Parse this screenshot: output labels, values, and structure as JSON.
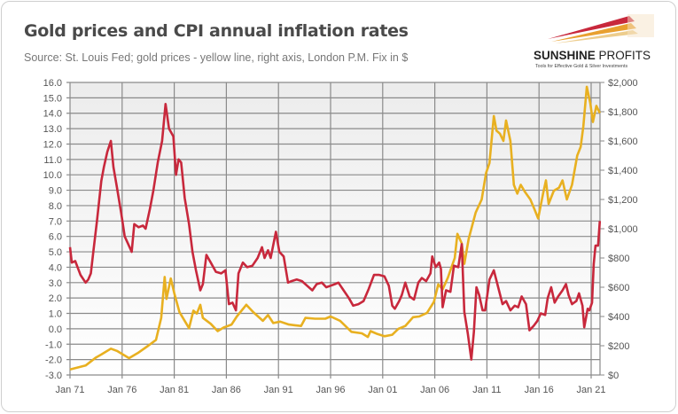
{
  "header": {
    "title": "Gold prices and CPI annual inflation rates",
    "subtitle": "Source: St. Louis Fed; gold prices - yellow line, right axis, London P.M. Fix in $"
  },
  "logo": {
    "name": "SUNSHINE PROFITS",
    "tagline": "Tools for Effective Gold & Silver Investments",
    "icon": "sun-rays-swoosh-icon"
  },
  "colors": {
    "cpi": "#c8283c",
    "gold": "#e8b020",
    "grid": "#8a8a8a",
    "plot_bg": "#f2f2f2"
  },
  "chart_data": {
    "type": "line",
    "title": "Gold prices and CPI annual inflation rates",
    "grid": true,
    "x_ticks": [
      "Jan 71",
      "Jan 76",
      "Jan 81",
      "Jan 86",
      "Jan 91",
      "Jan 96",
      "Jan 01",
      "Jan 06",
      "Jan 11",
      "Jan 16",
      "Jan 21"
    ],
    "xlim": [
      "1971-01",
      "2021-11"
    ],
    "y_left": {
      "ylim": [
        -3,
        16
      ],
      "ticks": [
        "16.0",
        "15.0",
        "14.0",
        "13.0",
        "12.0",
        "11.0",
        "10.0",
        "9.0",
        "8.0",
        "7.0",
        "6.0",
        "5.0",
        "4.0",
        "3.0",
        "2.0",
        "1.0",
        "0.0",
        "-1.0",
        "-2.0",
        "-3.0"
      ]
    },
    "y_right": {
      "ylim": [
        0,
        2000
      ],
      "ticks": [
        "$2,000",
        "$1,800",
        "$1,600",
        "$1,400",
        "$1,200",
        "$1,000",
        "$800",
        "$600",
        "$400",
        "$200",
        "$0"
      ]
    },
    "series": [
      {
        "key": "cpi",
        "axis": "left",
        "color": "#c8283c",
        "points": [
          [
            "1971-01",
            5.3
          ],
          [
            "1971-03",
            4.3
          ],
          [
            "1971-07",
            4.4
          ],
          [
            "1972-01",
            3.5
          ],
          [
            "1972-07",
            3.0
          ],
          [
            "1972-10",
            3.2
          ],
          [
            "1973-01",
            3.6
          ],
          [
            "1973-04",
            5.1
          ],
          [
            "1973-08",
            7.0
          ],
          [
            "1974-01",
            9.6
          ],
          [
            "1974-04",
            10.5
          ],
          [
            "1974-08",
            11.5
          ],
          [
            "1974-12",
            12.2
          ],
          [
            "1975-03",
            10.5
          ],
          [
            "1975-07",
            9.2
          ],
          [
            "1975-12",
            7.5
          ],
          [
            "1976-04",
            6.0
          ],
          [
            "1976-08",
            5.5
          ],
          [
            "1976-12",
            5.0
          ],
          [
            "1977-03",
            6.8
          ],
          [
            "1977-08",
            6.6
          ],
          [
            "1978-01",
            6.7
          ],
          [
            "1978-04",
            6.5
          ],
          [
            "1978-09",
            7.8
          ],
          [
            "1979-01",
            9.0
          ],
          [
            "1979-06",
            10.8
          ],
          [
            "1979-11",
            12.2
          ],
          [
            "1980-03",
            14.6
          ],
          [
            "1980-07",
            13.0
          ],
          [
            "1980-12",
            12.5
          ],
          [
            "1981-03",
            10.0
          ],
          [
            "1981-06",
            11.0
          ],
          [
            "1981-09",
            10.8
          ],
          [
            "1982-01",
            8.5
          ],
          [
            "1982-06",
            6.8
          ],
          [
            "1982-10",
            5.0
          ],
          [
            "1983-02",
            3.8
          ],
          [
            "1983-07",
            2.5
          ],
          [
            "1983-10",
            2.9
          ],
          [
            "1984-02",
            4.8
          ],
          [
            "1984-07",
            4.3
          ],
          [
            "1985-01",
            3.7
          ],
          [
            "1985-07",
            3.6
          ],
          [
            "1985-12",
            3.8
          ],
          [
            "1986-04",
            1.6
          ],
          [
            "1986-08",
            1.7
          ],
          [
            "1986-12",
            1.2
          ],
          [
            "1987-03",
            3.6
          ],
          [
            "1987-08",
            4.3
          ],
          [
            "1988-01",
            4.0
          ],
          [
            "1988-07",
            4.1
          ],
          [
            "1989-01",
            4.6
          ],
          [
            "1989-06",
            5.3
          ],
          [
            "1989-09",
            4.6
          ],
          [
            "1990-01",
            5.1
          ],
          [
            "1990-04",
            4.6
          ],
          [
            "1990-10",
            6.3
          ],
          [
            "1991-02",
            5.0
          ],
          [
            "1991-07",
            4.7
          ],
          [
            "1991-12",
            3.0
          ],
          [
            "1992-04",
            3.1
          ],
          [
            "1992-10",
            3.2
          ],
          [
            "1993-04",
            3.1
          ],
          [
            "1993-10",
            2.8
          ],
          [
            "1994-04",
            2.5
          ],
          [
            "1994-09",
            2.9
          ],
          [
            "1995-03",
            3.0
          ],
          [
            "1995-08",
            2.7
          ],
          [
            "1996-01",
            2.8
          ],
          [
            "1996-06",
            2.9
          ],
          [
            "1996-10",
            3.0
          ],
          [
            "1997-04",
            2.5
          ],
          [
            "1997-10",
            2.0
          ],
          [
            "1998-03",
            1.5
          ],
          [
            "1998-09",
            1.6
          ],
          [
            "1999-03",
            1.8
          ],
          [
            "1999-09",
            2.6
          ],
          [
            "2000-03",
            3.5
          ],
          [
            "2000-09",
            3.5
          ],
          [
            "2001-03",
            3.4
          ],
          [
            "2001-08",
            2.8
          ],
          [
            "2001-12",
            1.5
          ],
          [
            "2002-03",
            1.3
          ],
          [
            "2002-08",
            1.8
          ],
          [
            "2002-11",
            2.2
          ],
          [
            "2003-03",
            3.0
          ],
          [
            "2003-08",
            2.1
          ],
          [
            "2004-01",
            1.9
          ],
          [
            "2004-06",
            3.0
          ],
          [
            "2004-10",
            3.3
          ],
          [
            "2005-03",
            3.1
          ],
          [
            "2005-08",
            3.6
          ],
          [
            "2005-10",
            4.7
          ],
          [
            "2006-02",
            4.0
          ],
          [
            "2006-06",
            4.3
          ],
          [
            "2006-08",
            3.9
          ],
          [
            "2006-10",
            1.4
          ],
          [
            "2007-02",
            2.5
          ],
          [
            "2007-07",
            2.4
          ],
          [
            "2007-11",
            4.1
          ],
          [
            "2008-04",
            4.0
          ],
          [
            "2008-08",
            5.5
          ],
          [
            "2008-11",
            1.1
          ],
          [
            "2009-03",
            -0.3
          ],
          [
            "2009-07",
            -2.0
          ],
          [
            "2009-10",
            -0.2
          ],
          [
            "2010-01",
            2.7
          ],
          [
            "2010-04",
            2.2
          ],
          [
            "2010-08",
            1.2
          ],
          [
            "2010-11",
            1.2
          ],
          [
            "2011-04",
            3.2
          ],
          [
            "2011-09",
            3.8
          ],
          [
            "2012-01",
            2.9
          ],
          [
            "2012-07",
            1.6
          ],
          [
            "2012-11",
            1.8
          ],
          [
            "2013-04",
            1.2
          ],
          [
            "2013-09",
            1.5
          ],
          [
            "2014-01",
            1.4
          ],
          [
            "2014-05",
            2.1
          ],
          [
            "2014-10",
            1.6
          ],
          [
            "2015-02",
            -0.1
          ],
          [
            "2015-07",
            0.2
          ],
          [
            "2015-11",
            0.5
          ],
          [
            "2016-03",
            1.0
          ],
          [
            "2016-08",
            0.9
          ],
          [
            "2016-11",
            2.0
          ],
          [
            "2017-03",
            2.7
          ],
          [
            "2017-07",
            1.7
          ],
          [
            "2017-11",
            2.1
          ],
          [
            "2018-04",
            2.5
          ],
          [
            "2018-08",
            2.9
          ],
          [
            "2018-11",
            2.2
          ],
          [
            "2019-03",
            1.6
          ],
          [
            "2019-08",
            1.8
          ],
          [
            "2019-11",
            2.3
          ],
          [
            "2020-03",
            1.5
          ],
          [
            "2020-05",
            0.1
          ],
          [
            "2020-09",
            1.3
          ],
          [
            "2020-11",
            1.2
          ],
          [
            "2021-02",
            1.7
          ],
          [
            "2021-04",
            4.2
          ],
          [
            "2021-06",
            5.4
          ],
          [
            "2021-09",
            5.4
          ],
          [
            "2021-11",
            7.0
          ]
        ]
      },
      {
        "key": "gold",
        "axis": "right",
        "color": "#e8b020",
        "points": [
          [
            "1971-01",
            38
          ],
          [
            "1972-07",
            65
          ],
          [
            "1973-07",
            120
          ],
          [
            "1974-01",
            140
          ],
          [
            "1974-12",
            180
          ],
          [
            "1975-07",
            165
          ],
          [
            "1976-09",
            115
          ],
          [
            "1977-07",
            150
          ],
          [
            "1978-07",
            200
          ],
          [
            "1979-04",
            240
          ],
          [
            "1979-10",
            390
          ],
          [
            "1980-02",
            670
          ],
          [
            "1980-04",
            520
          ],
          [
            "1980-09",
            660
          ],
          [
            "1981-01",
            560
          ],
          [
            "1981-07",
            430
          ],
          [
            "1982-06",
            320
          ],
          [
            "1982-11",
            440
          ],
          [
            "1983-03",
            420
          ],
          [
            "1983-07",
            480
          ],
          [
            "1983-10",
            390
          ],
          [
            "1984-07",
            350
          ],
          [
            "1985-03",
            300
          ],
          [
            "1985-10",
            325
          ],
          [
            "1986-07",
            345
          ],
          [
            "1987-01",
            400
          ],
          [
            "1987-12",
            480
          ],
          [
            "1988-08",
            430
          ],
          [
            "1989-07",
            370
          ],
          [
            "1990-01",
            410
          ],
          [
            "1990-07",
            355
          ],
          [
            "1991-03",
            365
          ],
          [
            "1992-01",
            345
          ],
          [
            "1992-08",
            340
          ],
          [
            "1993-03",
            335
          ],
          [
            "1993-08",
            390
          ],
          [
            "1994-07",
            385
          ],
          [
            "1995-07",
            385
          ],
          [
            "1996-01",
            400
          ],
          [
            "1996-12",
            370
          ],
          [
            "1997-07",
            330
          ],
          [
            "1998-01",
            295
          ],
          [
            "1999-01",
            285
          ],
          [
            "1999-08",
            260
          ],
          [
            "1999-11",
            300
          ],
          [
            "2000-07",
            280
          ],
          [
            "2001-03",
            265
          ],
          [
            "2001-12",
            275
          ],
          [
            "2002-07",
            315
          ],
          [
            "2003-03",
            335
          ],
          [
            "2003-12",
            395
          ],
          [
            "2004-07",
            400
          ],
          [
            "2005-04",
            425
          ],
          [
            "2005-12",
            500
          ],
          [
            "2006-05",
            620
          ],
          [
            "2006-10",
            585
          ],
          [
            "2007-04",
            665
          ],
          [
            "2007-12",
            800
          ],
          [
            "2008-03",
            965
          ],
          [
            "2008-08",
            900
          ],
          [
            "2008-11",
            760
          ],
          [
            "2009-04",
            930
          ],
          [
            "2009-12",
            1110
          ],
          [
            "2010-07",
            1200
          ],
          [
            "2010-12",
            1380
          ],
          [
            "2011-04",
            1450
          ],
          [
            "2011-09",
            1770
          ],
          [
            "2011-12",
            1670
          ],
          [
            "2012-04",
            1650
          ],
          [
            "2012-08",
            1600
          ],
          [
            "2012-11",
            1740
          ],
          [
            "2013-04",
            1600
          ],
          [
            "2013-08",
            1300
          ],
          [
            "2013-12",
            1240
          ],
          [
            "2014-04",
            1300
          ],
          [
            "2014-09",
            1250
          ],
          [
            "2015-03",
            1200
          ],
          [
            "2015-08",
            1130
          ],
          [
            "2015-12",
            1070
          ],
          [
            "2016-06",
            1250
          ],
          [
            "2016-09",
            1330
          ],
          [
            "2016-12",
            1170
          ],
          [
            "2017-06",
            1260
          ],
          [
            "2017-12",
            1280
          ],
          [
            "2018-04",
            1330
          ],
          [
            "2018-09",
            1200
          ],
          [
            "2019-03",
            1300
          ],
          [
            "2019-09",
            1500
          ],
          [
            "2020-01",
            1560
          ],
          [
            "2020-04",
            1700
          ],
          [
            "2020-08",
            1970
          ],
          [
            "2020-12",
            1860
          ],
          [
            "2021-03",
            1730
          ],
          [
            "2021-07",
            1840
          ],
          [
            "2021-11",
            1790
          ]
        ]
      }
    ]
  }
}
